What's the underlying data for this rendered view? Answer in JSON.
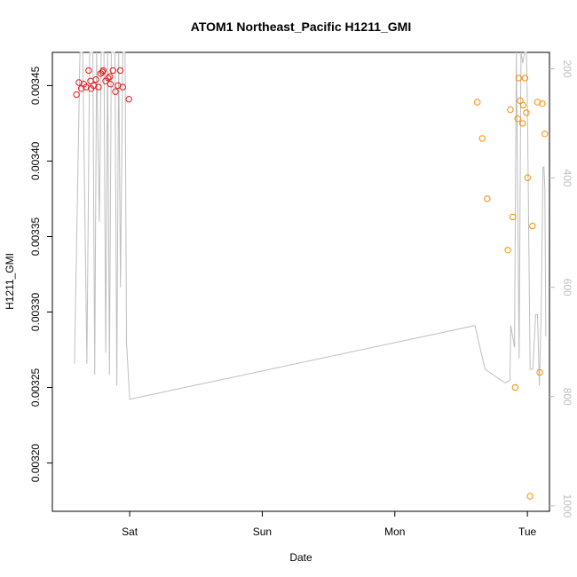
{
  "chart_data": {
    "type": "scatter",
    "title": "ATOM1 Northeast_Pacific H1211_GMI",
    "xlabel": "Date",
    "ylabel": "H1211_GMI",
    "x_axis": {
      "range": [
        "2018-04-27T10:00",
        "2018-05-01T04:00"
      ],
      "ticks": [
        {
          "label": "Sat",
          "value": "2018-04-28T00:00"
        },
        {
          "label": "Sun",
          "value": "2018-04-29T00:00"
        },
        {
          "label": "Mon",
          "value": "2018-04-30T00:00"
        },
        {
          "label": "Tue",
          "value": "2018-05-01T00:00"
        }
      ]
    },
    "y_axis": {
      "range": [
        0.003168,
        0.003472
      ],
      "ticks": [
        "0.00320",
        "0.00325",
        "0.00330",
        "0.00335",
        "0.00340",
        "0.00345"
      ]
    },
    "y2_axis": {
      "range": [
        1010,
        170
      ],
      "ticks": [
        "200",
        "400",
        "600",
        "800",
        "1000"
      ],
      "color": "#bebebe"
    },
    "series": [
      {
        "color": "#e41a1c",
        "points": [
          [
            "2018-04-27T14:21",
            0.003444
          ],
          [
            "2018-04-27T14:48",
            0.003452
          ],
          [
            "2018-04-27T15:14",
            0.003448
          ],
          [
            "2018-04-27T15:41",
            0.003451
          ],
          [
            "2018-04-27T16:07",
            0.003449
          ],
          [
            "2018-04-27T16:34",
            0.00346
          ],
          [
            "2018-04-27T17:00",
            0.003448
          ],
          [
            "2018-04-27T17:27",
            0.00345
          ],
          [
            "2018-04-27T17:53",
            0.003454
          ],
          [
            "2018-04-27T18:20",
            0.003449
          ],
          [
            "2018-04-27T18:46",
            0.003458
          ],
          [
            "2018-04-27T19:13",
            0.00346
          ],
          [
            "2018-04-27T19:39",
            0.003453
          ],
          [
            "2018-04-27T20:06",
            0.003455
          ],
          [
            "2018-04-27T20:32",
            0.003451
          ],
          [
            "2018-04-27T20:59",
            0.00346
          ],
          [
            "2018-04-27T21:25",
            0.003446
          ],
          [
            "2018-04-27T21:52",
            0.00345
          ],
          [
            "2018-04-27T22:18",
            0.00346
          ],
          [
            "2018-04-27T22:45",
            0.003449
          ],
          [
            "2018-04-27T23:51",
            0.003441
          ],
          [
            "2018-04-27T20:25",
            0.003456
          ],
          [
            "2018-04-27T19:05",
            0.003459
          ],
          [
            "2018-04-27T16:55",
            0.003453
          ]
        ]
      },
      {
        "color": "#ff8c00",
        "points": [
          [
            "2018-04-30T14:56",
            0.003439
          ],
          [
            "2018-04-30T15:49",
            0.003415
          ],
          [
            "2018-04-30T16:43",
            0.003375
          ],
          [
            "2018-04-30T20:28",
            0.003341
          ],
          [
            "2018-04-30T20:55",
            0.003434
          ],
          [
            "2018-04-30T21:22",
            0.003363
          ],
          [
            "2018-04-30T21:48",
            0.00325
          ],
          [
            "2018-04-30T22:15",
            0.003428
          ],
          [
            "2018-04-30T22:25",
            0.003455
          ],
          [
            "2018-04-30T22:42",
            0.00344
          ],
          [
            "2018-04-30T23:08",
            0.003425
          ],
          [
            "2018-04-30T23:14",
            0.003437
          ],
          [
            "2018-04-30T23:35",
            0.003455
          ],
          [
            "2018-04-30T23:48",
            0.003432
          ],
          [
            "2018-05-01T00:02",
            0.003389
          ],
          [
            "2018-05-01T00:29",
            0.003178
          ],
          [
            "2018-05-01T00:55",
            0.003357
          ],
          [
            "2018-05-01T01:49",
            0.003439
          ],
          [
            "2018-05-01T02:15",
            0.00326
          ],
          [
            "2018-05-01T02:42",
            0.003438
          ],
          [
            "2018-05-01T03:09",
            0.003418
          ]
        ]
      }
    ],
    "secondary_line": {
      "color": "#bebebe",
      "axis": "y2",
      "points": [
        [
          "2018-04-27T14:00",
          740
        ],
        [
          "2018-04-27T15:00",
          170
        ],
        [
          "2018-04-27T15:30",
          170
        ],
        [
          "2018-04-27T16:15",
          740
        ],
        [
          "2018-04-27T16:45",
          170
        ],
        [
          "2018-04-27T17:20",
          170
        ],
        [
          "2018-04-27T17:40",
          760
        ],
        [
          "2018-04-27T18:00",
          170
        ],
        [
          "2018-04-27T18:30",
          480
        ],
        [
          "2018-04-27T18:50",
          170
        ],
        [
          "2018-04-27T19:20",
          170
        ],
        [
          "2018-04-27T19:40",
          720
        ],
        [
          "2018-04-27T20:00",
          170
        ],
        [
          "2018-04-27T20:20",
          760
        ],
        [
          "2018-04-27T20:40",
          170
        ],
        [
          "2018-04-27T21:20",
          170
        ],
        [
          "2018-04-27T21:40",
          780
        ],
        [
          "2018-04-27T22:00",
          170
        ],
        [
          "2018-04-27T22:20",
          600
        ],
        [
          "2018-04-27T22:45",
          170
        ],
        [
          "2018-04-27T23:10",
          170
        ],
        [
          "2018-04-27T23:25",
          700
        ],
        [
          "2018-04-28T00:00",
          805
        ],
        [
          "2018-04-30T14:30",
          670
        ],
        [
          "2018-04-30T16:20",
          750
        ],
        [
          "2018-04-30T20:00",
          775
        ],
        [
          "2018-04-30T20:50",
          770
        ],
        [
          "2018-04-30T21:00",
          670
        ],
        [
          "2018-04-30T21:40",
          710
        ],
        [
          "2018-04-30T22:00",
          170
        ],
        [
          "2018-04-30T22:30",
          730
        ],
        [
          "2018-04-30T22:50",
          170
        ],
        [
          "2018-04-30T23:10",
          190
        ],
        [
          "2018-04-30T23:30",
          170
        ],
        [
          "2018-04-30T23:50",
          170
        ],
        [
          "2018-05-01T00:00",
          260
        ],
        [
          "2018-05-01T00:30",
          750
        ],
        [
          "2018-05-01T01:00",
          750
        ],
        [
          "2018-05-01T01:30",
          650
        ],
        [
          "2018-05-01T01:50",
          650
        ],
        [
          "2018-05-01T02:10",
          780
        ],
        [
          "2018-05-01T02:30",
          640
        ],
        [
          "2018-05-01T02:50",
          380
        ],
        [
          "2018-05-01T03:00",
          380
        ],
        [
          "2018-05-01T03:10",
          420
        ],
        [
          "2018-05-01T03:20",
          690
        ]
      ]
    },
    "grid": false,
    "legend": "none"
  }
}
